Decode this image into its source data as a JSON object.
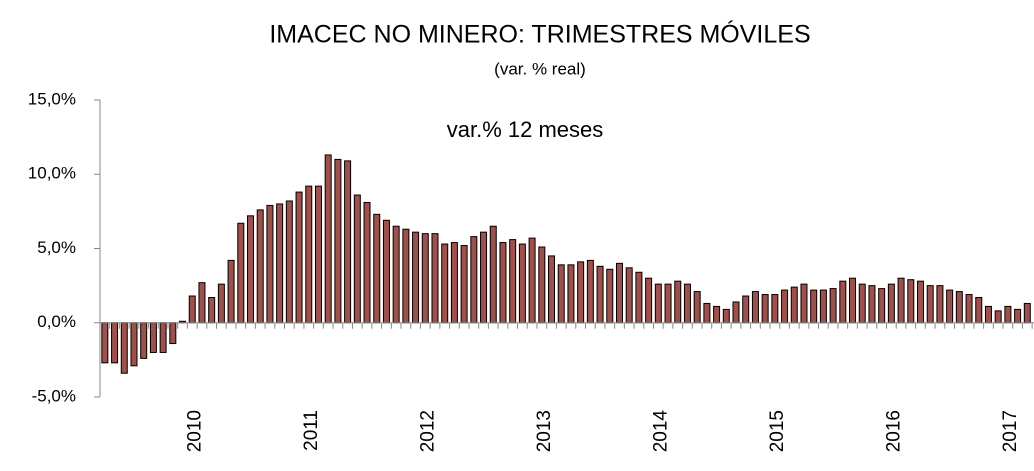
{
  "chart_data": {
    "type": "bar",
    "title": "IMACEC NO MINERO: TRIMESTRES MÓVILES",
    "subtitle": "(var. % real)",
    "annotation": "var.% 12 meses",
    "color": "#a0504a",
    "categories": [
      null,
      null,
      null,
      null,
      null,
      null,
      null,
      null,
      null,
      "2010",
      null,
      null,
      null,
      null,
      null,
      null,
      null,
      null,
      null,
      null,
      null,
      "2011",
      null,
      null,
      null,
      null,
      null,
      null,
      null,
      null,
      null,
      null,
      null,
      "2012",
      null,
      null,
      null,
      null,
      null,
      null,
      null,
      null,
      null,
      null,
      null,
      "2013",
      null,
      null,
      null,
      null,
      null,
      null,
      null,
      null,
      null,
      null,
      null,
      "2014",
      null,
      null,
      null,
      null,
      null,
      null,
      null,
      null,
      null,
      null,
      null,
      "2015",
      null,
      null,
      null,
      null,
      null,
      null,
      null,
      null,
      null,
      null,
      null,
      "2016",
      null,
      null,
      null,
      null,
      null,
      null,
      null,
      null,
      null,
      null,
      null,
      "2017",
      null,
      null
    ],
    "values": [
      -2.7,
      -2.7,
      -3.4,
      -2.9,
      -2.4,
      -2.0,
      -2.0,
      -1.4,
      0.1,
      1.8,
      2.7,
      1.7,
      2.6,
      4.2,
      6.7,
      7.2,
      7.6,
      7.9,
      8.0,
      8.2,
      8.8,
      9.2,
      9.2,
      11.3,
      11.0,
      10.9,
      8.6,
      8.1,
      7.3,
      6.9,
      6.5,
      6.3,
      6.1,
      6.0,
      6.0,
      5.3,
      5.4,
      5.2,
      5.8,
      6.1,
      6.5,
      5.4,
      5.6,
      5.3,
      5.7,
      5.1,
      4.5,
      3.9,
      3.9,
      4.1,
      4.2,
      3.8,
      3.6,
      4.0,
      3.7,
      3.4,
      3.0,
      2.6,
      2.6,
      2.8,
      2.6,
      2.1,
      1.3,
      1.1,
      0.9,
      1.4,
      1.8,
      2.1,
      1.9,
      1.9,
      2.2,
      2.4,
      2.6,
      2.2,
      2.2,
      2.3,
      2.8,
      3.0,
      2.6,
      2.5,
      2.3,
      2.6,
      3.0,
      2.9,
      2.8,
      2.5,
      2.5,
      2.2,
      2.1,
      1.9,
      1.7,
      1.1,
      0.8,
      1.1,
      0.9,
      1.3
    ],
    "ylim": [
      -5,
      15
    ],
    "yticks": [
      {
        "value": -5,
        "label": "-5,0%"
      },
      {
        "value": 0,
        "label": "0,0%"
      },
      {
        "value": 5,
        "label": "5,0%"
      },
      {
        "value": 10,
        "label": "10,0%"
      },
      {
        "value": 15,
        "label": "15,0%"
      }
    ]
  }
}
